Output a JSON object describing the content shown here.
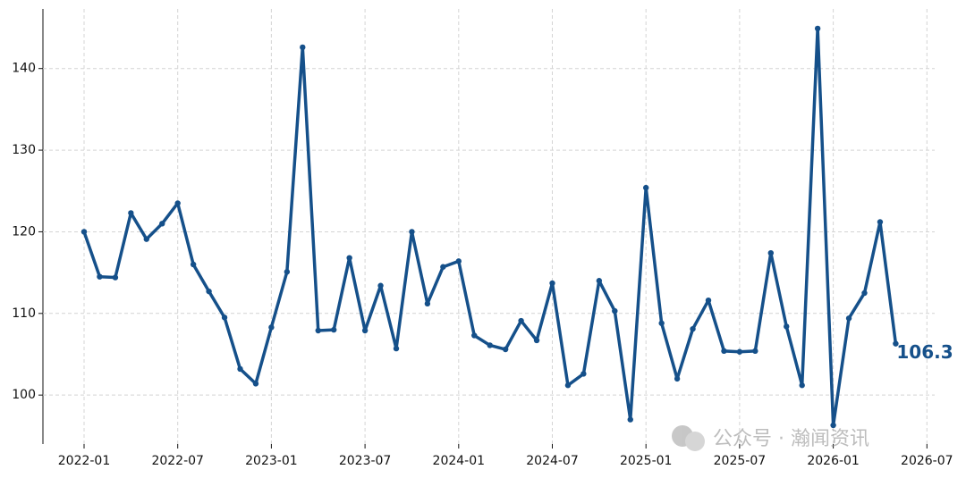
{
  "chart_data": {
    "type": "line",
    "x": [
      "2022-01",
      "2022-02",
      "2022-03",
      "2022-04",
      "2022-05",
      "2022-06",
      "2022-07",
      "2022-08",
      "2022-09",
      "2022-10",
      "2022-11",
      "2022-12",
      "2023-01",
      "2023-02",
      "2023-03",
      "2023-04",
      "2023-05",
      "2023-06",
      "2023-07",
      "2023-08",
      "2023-09",
      "2023-10",
      "2023-11",
      "2023-12",
      "2024-01",
      "2024-02",
      "2024-03",
      "2024-04",
      "2024-05",
      "2024-06",
      "2024-07",
      "2024-08",
      "2024-09",
      "2024-10",
      "2024-11",
      "2024-12",
      "2025-01",
      "2025-02",
      "2025-03",
      "2025-04",
      "2025-05",
      "2025-06",
      "2025-07",
      "2025-08",
      "2025-09",
      "2025-10",
      "2025-11",
      "2025-12",
      "2026-01",
      "2026-02",
      "2026-03",
      "2026-04",
      "2026-05"
    ],
    "series": [
      {
        "color": "#15508a",
        "values": [
          120.0,
          114.5,
          114.4,
          122.3,
          119.1,
          121.0,
          123.5,
          116.0,
          112.7,
          109.5,
          103.2,
          101.4,
          108.3,
          115.1,
          142.6,
          107.9,
          108.0,
          116.8,
          107.9,
          113.4,
          105.7,
          120.0,
          111.2,
          115.7,
          116.4,
          107.3,
          106.1,
          105.6,
          109.1,
          106.7,
          113.7,
          101.2,
          102.6,
          114.0,
          110.3,
          97.0,
          125.4,
          108.8,
          102.0,
          108.1,
          111.6,
          105.4,
          105.3,
          105.4,
          117.4,
          108.4,
          101.2,
          144.9,
          96.3,
          109.4,
          112.5,
          121.2,
          106.3
        ]
      }
    ],
    "xticks": [
      "2022-01",
      "2022-07",
      "2023-01",
      "2023-07",
      "2024-01",
      "2024-07",
      "2025-01",
      "2025-07",
      "2026-01",
      "2026-07"
    ],
    "ylim": [
      94,
      147.3
    ],
    "yticks": [
      100,
      110,
      120,
      130,
      140
    ],
    "grid": true,
    "watermark": "公众号 · 瀚闻资讯"
  }
}
